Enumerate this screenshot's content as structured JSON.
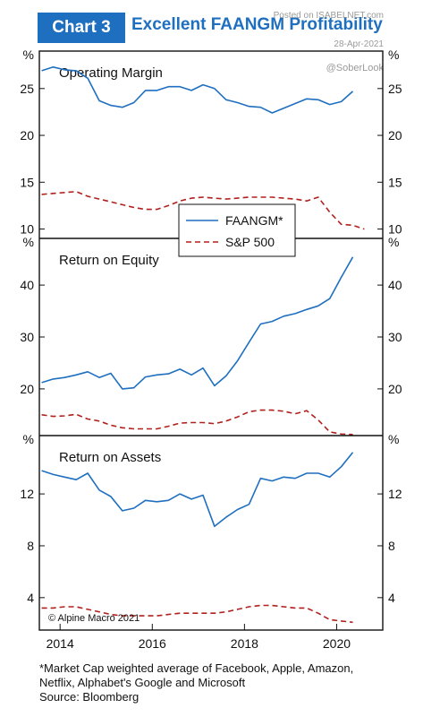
{
  "header": {
    "badge": "Chart 3",
    "title": "Excellent FAANGM Profitability",
    "watermark_site": "Posted on ISABELNET.com",
    "watermark_date": "28-Apr-2021",
    "watermark_handle": "@SoberLook"
  },
  "copyright": "© Alpine Macro 2021",
  "footnote": {
    "line1": "*Market Cap weighted average of Facebook, Apple, Amazon,",
    "line2": "Netflix, Alphabet's Google and Microsoft",
    "source": "Source: Bloomberg"
  },
  "colors": {
    "faangm": "#1f6fc0",
    "sp500": "#b0201c",
    "accent": "#1f6fc0"
  },
  "chart_data": {
    "type": "line",
    "x_axis": {
      "ticks": [
        2014,
        2016,
        2018,
        2020
      ],
      "range": [
        2013.55,
        2021.0
      ]
    },
    "legend": {
      "placement": "inside-first-panel",
      "entries": [
        "FAANGM*",
        "S&P 500"
      ]
    },
    "panels": [
      {
        "title": "Operating Margin",
        "unit_label": "%",
        "ylim": [
          9,
          29
        ],
        "y_ticks": [
          10,
          15,
          20,
          25
        ],
        "series": [
          {
            "name": "FAANGM*",
            "style": "solid",
            "x": [
              2013.6,
              2013.85,
              2014.1,
              2014.35,
              2014.6,
              2014.85,
              2015.1,
              2015.35,
              2015.6,
              2015.85,
              2016.1,
              2016.35,
              2016.6,
              2016.85,
              2017.1,
              2017.35,
              2017.6,
              2017.85,
              2018.1,
              2018.35,
              2018.6,
              2018.85,
              2019.1,
              2019.35,
              2019.6,
              2019.85,
              2020.1,
              2020.35,
              2020.6,
              2020.85
            ],
            "values": [
              26.9,
              27.3,
              27.0,
              26.9,
              26.1,
              23.7,
              23.2,
              23.0,
              23.5,
              24.8,
              24.8,
              25.2,
              25.2,
              24.8,
              25.4,
              25.0,
              23.8,
              23.5,
              23.1,
              23.0,
              22.4,
              22.9,
              23.4,
              23.9,
              23.8,
              23.3,
              23.6,
              24.7,
              null,
              null
            ]
          },
          {
            "name": "S&P 500",
            "style": "dashed",
            "x": [
              2013.6,
              2013.85,
              2014.1,
              2014.35,
              2014.6,
              2014.85,
              2015.1,
              2015.35,
              2015.6,
              2015.85,
              2016.1,
              2016.35,
              2016.6,
              2016.85,
              2017.1,
              2017.35,
              2017.6,
              2017.85,
              2018.1,
              2018.35,
              2018.6,
              2018.85,
              2019.1,
              2019.35,
              2019.6,
              2019.85,
              2020.1,
              2020.35,
              2020.6,
              2020.85
            ],
            "values": [
              13.7,
              13.8,
              13.9,
              14.0,
              13.5,
              13.2,
              12.9,
              12.6,
              12.3,
              12.1,
              12.1,
              12.5,
              13.0,
              13.3,
              13.4,
              13.3,
              13.2,
              13.3,
              13.4,
              13.4,
              13.4,
              13.3,
              13.2,
              13.0,
              13.4,
              11.8,
              10.5,
              10.4,
              10.0,
              null
            ]
          }
        ]
      },
      {
        "title": "Return on Equity",
        "unit_label": "%",
        "ylim": [
          11,
          49
        ],
        "y_ticks": [
          20,
          30,
          40
        ],
        "series": [
          {
            "name": "FAANGM*",
            "style": "solid",
            "x": [
              2013.6,
              2013.85,
              2014.1,
              2014.35,
              2014.6,
              2014.85,
              2015.1,
              2015.35,
              2015.6,
              2015.85,
              2016.1,
              2016.35,
              2016.6,
              2016.85,
              2017.1,
              2017.35,
              2017.6,
              2017.85,
              2018.1,
              2018.35,
              2018.6,
              2018.85,
              2019.1,
              2019.35,
              2019.6,
              2019.85,
              2020.1,
              2020.35,
              2020.6,
              2020.85
            ],
            "values": [
              21.2,
              21.9,
              22.2,
              22.7,
              23.3,
              22.2,
              23.0,
              20.0,
              20.2,
              22.3,
              22.7,
              22.9,
              23.8,
              22.7,
              24.0,
              20.6,
              22.5,
              25.4,
              29.0,
              32.5,
              33.0,
              34.0,
              34.5,
              35.3,
              36.0,
              37.4,
              41.5,
              45.4,
              null,
              null
            ]
          },
          {
            "name": "S&P 500",
            "style": "dashed",
            "x": [
              2013.6,
              2013.85,
              2014.1,
              2014.35,
              2014.6,
              2014.85,
              2015.1,
              2015.35,
              2015.6,
              2015.85,
              2016.1,
              2016.35,
              2016.6,
              2016.85,
              2017.1,
              2017.35,
              2017.6,
              2017.85,
              2018.1,
              2018.35,
              2018.6,
              2018.85,
              2019.1,
              2019.35,
              2019.6,
              2019.85,
              2020.1,
              2020.35,
              2020.6,
              2020.85
            ],
            "values": [
              15.0,
              14.7,
              14.8,
              15.1,
              14.2,
              13.8,
              13.0,
              12.5,
              12.3,
              12.3,
              12.3,
              12.8,
              13.4,
              13.5,
              13.5,
              13.3,
              13.8,
              14.6,
              15.6,
              15.9,
              15.9,
              15.7,
              15.2,
              15.8,
              14.0,
              11.7,
              11.3,
              11.2,
              null,
              null
            ]
          }
        ]
      },
      {
        "title": "Return on Assets",
        "unit_label": "%",
        "ylim": [
          1.5,
          16.5
        ],
        "y_ticks": [
          4,
          8,
          12
        ],
        "series": [
          {
            "name": "FAANGM*",
            "style": "solid",
            "x": [
              2013.6,
              2013.85,
              2014.1,
              2014.35,
              2014.6,
              2014.85,
              2015.1,
              2015.35,
              2015.6,
              2015.85,
              2016.1,
              2016.35,
              2016.6,
              2016.85,
              2017.1,
              2017.35,
              2017.6,
              2017.85,
              2018.1,
              2018.35,
              2018.6,
              2018.85,
              2019.1,
              2019.35,
              2019.6,
              2019.85,
              2020.1,
              2020.35,
              2020.6,
              2020.85
            ],
            "values": [
              13.8,
              13.5,
              13.3,
              13.1,
              13.6,
              12.3,
              11.8,
              10.7,
              10.9,
              11.5,
              11.4,
              11.5,
              12.0,
              11.6,
              11.9,
              9.5,
              10.2,
              10.8,
              11.2,
              13.2,
              13.0,
              13.3,
              13.2,
              13.6,
              13.6,
              13.3,
              14.1,
              15.2,
              null,
              null
            ]
          },
          {
            "name": "S&P 500",
            "style": "dashed",
            "x": [
              2013.6,
              2013.85,
              2014.1,
              2014.35,
              2014.6,
              2014.85,
              2015.1,
              2015.35,
              2015.6,
              2015.85,
              2016.1,
              2016.35,
              2016.6,
              2016.85,
              2017.1,
              2017.35,
              2017.6,
              2017.85,
              2018.1,
              2018.35,
              2018.6,
              2018.85,
              2019.1,
              2019.35,
              2019.6,
              2019.85,
              2020.1,
              2020.35,
              2020.6,
              2020.85
            ],
            "values": [
              3.2,
              3.2,
              3.3,
              3.3,
              3.1,
              2.9,
              2.7,
              2.6,
              2.6,
              2.6,
              2.6,
              2.7,
              2.8,
              2.8,
              2.8,
              2.8,
              2.9,
              3.1,
              3.3,
              3.4,
              3.4,
              3.3,
              3.2,
              3.2,
              2.8,
              2.3,
              2.2,
              2.1,
              null,
              null
            ]
          }
        ]
      }
    ]
  }
}
